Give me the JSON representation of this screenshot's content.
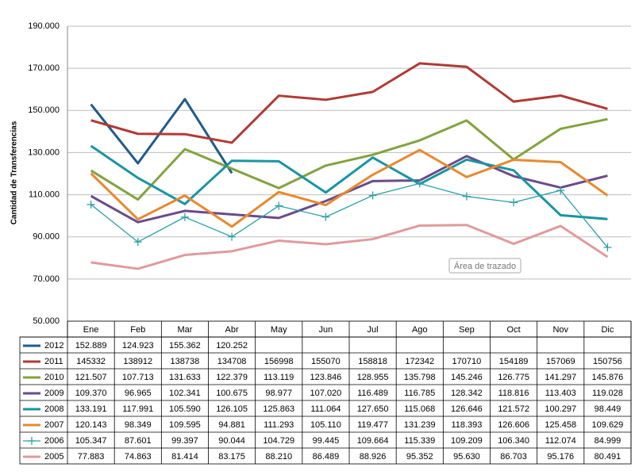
{
  "chart_data": {
    "type": "line",
    "y_label": "Cantidad de Transferencias",
    "annotation": "Área de trazado",
    "categories": [
      "Ene",
      "Feb",
      "Mar",
      "Abr",
      "May",
      "Jun",
      "Jul",
      "Ago",
      "Sep",
      "Oct",
      "Nov",
      "Dic"
    ],
    "ylim": [
      50000,
      190000
    ],
    "yticks": [
      {
        "value": 50000,
        "label": "50.000"
      },
      {
        "value": 70000,
        "label": "70.000"
      },
      {
        "value": 90000,
        "label": "90.000"
      },
      {
        "value": 110000,
        "label": "110.000"
      },
      {
        "value": 130000,
        "label": "130.000"
      },
      {
        "value": 150000,
        "label": "150.000"
      },
      {
        "value": 170000,
        "label": "170.000"
      },
      {
        "value": 190000,
        "label": "190.000"
      }
    ],
    "grid": true,
    "series": [
      {
        "name": "2012",
        "color": "#1f5c8b",
        "values": [
          152889,
          124923,
          155362,
          120252,
          null,
          null,
          null,
          null,
          null,
          null,
          null,
          null
        ],
        "value_labels": [
          "152.889",
          "124.923",
          "155.362",
          "120.252",
          null,
          null,
          null,
          null,
          null,
          null,
          null,
          null
        ]
      },
      {
        "name": "2011",
        "color": "#b03a36",
        "values": [
          145332,
          138912,
          138738,
          134708,
          156998,
          155070,
          158818,
          172342,
          170710,
          154189,
          157069,
          150756
        ]
      },
      {
        "name": "2010",
        "color": "#82a33e",
        "values": [
          121507,
          107713,
          131633,
          122379,
          113119,
          123846,
          128955,
          135798,
          145246,
          126775,
          141297,
          145876
        ],
        "value_labels": [
          "121.507",
          "107.713",
          "131.633",
          "122.379",
          "113.119",
          "123.846",
          "128.955",
          "135.798",
          "145.246",
          "126.775",
          "141.297",
          "145.876"
        ]
      },
      {
        "name": "2009",
        "color": "#6a4a8c",
        "values": [
          109370,
          96965,
          102341,
          100675,
          98977,
          107020,
          116489,
          116785,
          128342,
          118816,
          113403,
          119028
        ],
        "value_labels": [
          "109.370",
          "96.965",
          "102.341",
          "100.675",
          "98.977",
          "107.020",
          "116.489",
          "116.785",
          "128.342",
          "118.816",
          "113.403",
          "119.028"
        ]
      },
      {
        "name": "2008",
        "color": "#1a95a3",
        "values": [
          133191,
          117991,
          105590,
          126105,
          125863,
          111064,
          127650,
          115068,
          126646,
          121572,
          100297,
          98449
        ],
        "value_labels": [
          "133.191",
          "117.991",
          "105.590",
          "126.105",
          "125.863",
          "111.064",
          "127.650",
          "115.068",
          "126.646",
          "121.572",
          "100.297",
          "98.449"
        ]
      },
      {
        "name": "2007",
        "color": "#e8892f",
        "values": [
          120143,
          98349,
          109595,
          94881,
          111293,
          105110,
          119477,
          131239,
          118393,
          126606,
          125458,
          109629
        ],
        "value_labels": [
          "120.143",
          "98.349",
          "109.595",
          "94.881",
          "111.293",
          "105.110",
          "119.477",
          "131.239",
          "118.393",
          "126.606",
          "125.458",
          "109.629"
        ]
      },
      {
        "name": "2006",
        "color": "#2aa0a8",
        "marker": "plus",
        "values": [
          105347,
          87601,
          99397,
          90044,
          104729,
          99445,
          109664,
          115339,
          109209,
          106340,
          112074,
          84999
        ],
        "value_labels": [
          "105.347",
          "87.601",
          "99.397",
          "90.044",
          "104.729",
          "99.445",
          "109.664",
          "115.339",
          "109.209",
          "106.340",
          "112.074",
          "84.999"
        ]
      },
      {
        "name": "2005",
        "color": "#e09a9c",
        "values": [
          77883,
          74863,
          81414,
          83175,
          88210,
          86489,
          88926,
          95352,
          95630,
          86703,
          95176,
          80491
        ],
        "value_labels": [
          "77.883",
          "74.863",
          "81.414",
          "83.175",
          "88.210",
          "86.489",
          "88.926",
          "95.352",
          "95.630",
          "86.703",
          "95.176",
          "80.491"
        ]
      }
    ]
  }
}
